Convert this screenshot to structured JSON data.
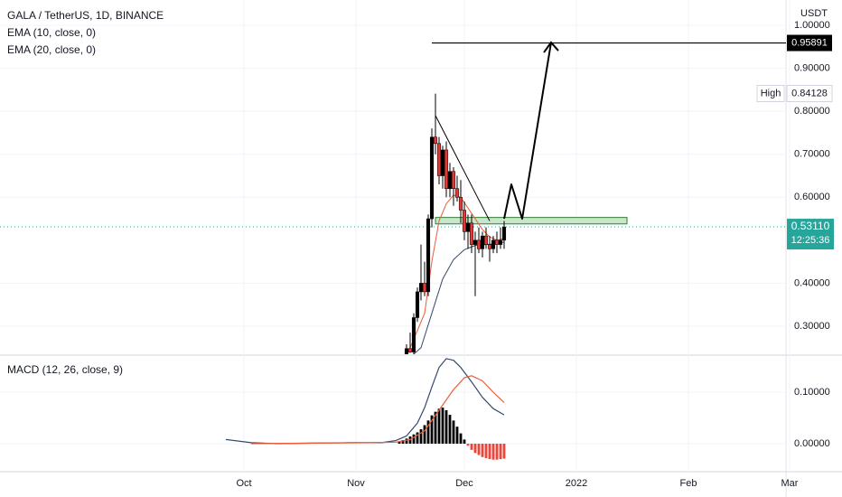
{
  "colors": {
    "up": "#000000",
    "down": "#e53935",
    "ema_fast": "#ef5a3a",
    "ema_slow": "#344a6b",
    "macd_line": "#344a6b",
    "signal_line": "#ef5a3a",
    "hist_up": "#000000",
    "hist_down": "#f44336",
    "grid": "#f0f3fa",
    "axis_text": "#131722",
    "last_price_bg": "#26a69a",
    "target_bg": "#000000",
    "zone_fill": "#c8e6c9",
    "zone_stroke": "#2e7d32",
    "current_price_line": "#26a69a"
  },
  "header": {
    "symbol_line": "GALA / TetherUS, 1D, BINANCE",
    "ema10_label": "EMA (10, close, 0)",
    "ema20_label": "EMA (20, close, 0)",
    "macd_label": "MACD (12, 26, close, 9)",
    "currency": "USDT"
  },
  "chart_data": [
    {
      "type": "candlestick",
      "title": "GALA / TetherUS, 1D, BINANCE",
      "ylabel": "USDT",
      "ylim": [
        0.23,
        1.0
      ],
      "price_ticks": [
        "1.00000",
        "0.90000",
        "0.80000",
        "0.70000",
        "0.60000",
        "0.40000",
        "0.30000"
      ],
      "price_tick_values": [
        1.0,
        0.9,
        0.8,
        0.7,
        0.6,
        0.4,
        0.3
      ],
      "x_labels": [
        "Oct",
        "Nov",
        "Dec",
        "2022",
        "Feb",
        "Mar"
      ],
      "x_label_dates": [
        "2021-10-01",
        "2021-11-01",
        "2021-12-01",
        "2022-01-01",
        "2022-02-01",
        "2022-03-01"
      ],
      "candles": [
        {
          "d": "2021-11-15",
          "o": 0.225,
          "h": 0.258,
          "l": 0.218,
          "c": 0.248
        },
        {
          "d": "2021-11-16",
          "o": 0.248,
          "h": 0.285,
          "l": 0.238,
          "c": 0.24
        },
        {
          "d": "2021-11-17",
          "o": 0.24,
          "h": 0.33,
          "l": 0.235,
          "c": 0.32
        },
        {
          "d": "2021-11-18",
          "o": 0.32,
          "h": 0.39,
          "l": 0.31,
          "c": 0.38
        },
        {
          "d": "2021-11-19",
          "o": 0.38,
          "h": 0.49,
          "l": 0.36,
          "c": 0.4
        },
        {
          "d": "2021-11-20",
          "o": 0.4,
          "h": 0.45,
          "l": 0.37,
          "c": 0.38
        },
        {
          "d": "2021-11-21",
          "o": 0.38,
          "h": 0.56,
          "l": 0.37,
          "c": 0.55
        },
        {
          "d": "2021-11-22",
          "o": 0.55,
          "h": 0.76,
          "l": 0.53,
          "c": 0.74
        },
        {
          "d": "2021-11-23",
          "o": 0.74,
          "h": 0.841,
          "l": 0.7,
          "c": 0.725
        },
        {
          "d": "2021-11-24",
          "o": 0.725,
          "h": 0.74,
          "l": 0.63,
          "c": 0.65
        },
        {
          "d": "2021-11-25",
          "o": 0.65,
          "h": 0.72,
          "l": 0.62,
          "c": 0.71
        },
        {
          "d": "2021-11-26",
          "o": 0.71,
          "h": 0.73,
          "l": 0.6,
          "c": 0.62
        },
        {
          "d": "2021-11-27",
          "o": 0.62,
          "h": 0.68,
          "l": 0.6,
          "c": 0.66
        },
        {
          "d": "2021-11-28",
          "o": 0.66,
          "h": 0.67,
          "l": 0.58,
          "c": 0.62
        },
        {
          "d": "2021-11-29",
          "o": 0.62,
          "h": 0.65,
          "l": 0.59,
          "c": 0.6
        },
        {
          "d": "2021-11-30",
          "o": 0.6,
          "h": 0.64,
          "l": 0.54,
          "c": 0.57
        },
        {
          "d": "2021-12-01",
          "o": 0.57,
          "h": 0.59,
          "l": 0.5,
          "c": 0.52
        },
        {
          "d": "2021-12-02",
          "o": 0.52,
          "h": 0.56,
          "l": 0.48,
          "c": 0.54
        },
        {
          "d": "2021-12-03",
          "o": 0.54,
          "h": 0.56,
          "l": 0.47,
          "c": 0.49
        },
        {
          "d": "2021-12-04",
          "o": 0.49,
          "h": 0.52,
          "l": 0.37,
          "c": 0.5
        },
        {
          "d": "2021-12-05",
          "o": 0.5,
          "h": 0.53,
          "l": 0.47,
          "c": 0.48
        },
        {
          "d": "2021-12-06",
          "o": 0.48,
          "h": 0.52,
          "l": 0.46,
          "c": 0.51
        },
        {
          "d": "2021-12-07",
          "o": 0.51,
          "h": 0.53,
          "l": 0.48,
          "c": 0.49
        },
        {
          "d": "2021-12-08",
          "o": 0.49,
          "h": 0.51,
          "l": 0.45,
          "c": 0.48
        },
        {
          "d": "2021-12-09",
          "o": 0.48,
          "h": 0.51,
          "l": 0.47,
          "c": 0.5
        },
        {
          "d": "2021-12-10",
          "o": 0.5,
          "h": 0.52,
          "l": 0.47,
          "c": 0.49
        },
        {
          "d": "2021-12-11",
          "o": 0.49,
          "h": 0.53,
          "l": 0.48,
          "c": 0.5
        },
        {
          "d": "2021-12-12",
          "o": 0.5,
          "h": 0.545,
          "l": 0.48,
          "c": 0.531
        }
      ],
      "ema10": [
        [
          "2021-11-15",
          0.23
        ],
        [
          "2021-11-18",
          0.29
        ],
        [
          "2021-11-20",
          0.33
        ],
        [
          "2021-11-22",
          0.45
        ],
        [
          "2021-11-24",
          0.545
        ],
        [
          "2021-11-26",
          0.585
        ],
        [
          "2021-11-28",
          0.605
        ],
        [
          "2021-11-30",
          0.6
        ],
        [
          "2021-12-02",
          0.575
        ],
        [
          "2021-12-04",
          0.55
        ],
        [
          "2021-12-06",
          0.525
        ],
        [
          "2021-12-08",
          0.508
        ],
        [
          "2021-12-10",
          0.5
        ],
        [
          "2021-12-12",
          0.504
        ]
      ],
      "ema20": [
        [
          "2021-11-15",
          0.22
        ],
        [
          "2021-11-19",
          0.25
        ],
        [
          "2021-11-22",
          0.33
        ],
        [
          "2021-11-25",
          0.41
        ],
        [
          "2021-11-28",
          0.455
        ],
        [
          "2021-12-01",
          0.478
        ],
        [
          "2021-12-04",
          0.488
        ],
        [
          "2021-12-07",
          0.49
        ],
        [
          "2021-12-10",
          0.492
        ],
        [
          "2021-12-12",
          0.496
        ]
      ],
      "annotations": {
        "high_label": "High",
        "high_value": 0.84128,
        "high_text": "0.84128",
        "target_value": 0.95891,
        "target_text": "0.95891",
        "last_value": 0.5311,
        "last_text": "0.53110",
        "countdown_text": "12:25:36",
        "resistance_zone": {
          "from": "2021-11-23",
          "to": "2022-01-15",
          "low": 0.538,
          "high": 0.553
        },
        "trendline": [
          [
            "2021-11-23",
            0.79
          ],
          [
            "2021-12-08",
            0.545
          ]
        ],
        "target_line": {
          "from": "2021-11-22",
          "to": "2022-03-01",
          "value": 0.95891
        },
        "projection_path": [
          [
            "2021-12-12",
            0.55
          ],
          [
            "2021-12-14",
            0.63
          ],
          [
            "2021-12-17",
            0.55
          ],
          [
            "2021-12-25",
            0.96
          ]
        ]
      }
    },
    {
      "type": "line",
      "title": "MACD (12, 26, close, 9)",
      "ylim": [
        -0.025,
        0.19
      ],
      "y_ticks": [
        "0.10000",
        "0.00000"
      ],
      "y_tick_values": [
        0.1,
        0.0
      ],
      "macd": [
        [
          "2021-09-26",
          0.008
        ],
        [
          "2021-10-03",
          0.002
        ],
        [
          "2021-10-10",
          0.0
        ],
        [
          "2021-10-20",
          0.001
        ],
        [
          "2021-10-30",
          0.002
        ],
        [
          "2021-11-08",
          0.002
        ],
        [
          "2021-11-12",
          0.006
        ],
        [
          "2021-11-15",
          0.015
        ],
        [
          "2021-11-18",
          0.04
        ],
        [
          "2021-11-20",
          0.07
        ],
        [
          "2021-11-22",
          0.11
        ],
        [
          "2021-11-24",
          0.148
        ],
        [
          "2021-11-26",
          0.165
        ],
        [
          "2021-11-28",
          0.162
        ],
        [
          "2021-11-30",
          0.148
        ],
        [
          "2021-12-03",
          0.12
        ],
        [
          "2021-12-06",
          0.09
        ],
        [
          "2021-12-09",
          0.068
        ],
        [
          "2021-12-12",
          0.056
        ]
      ],
      "signal": [
        [
          "2021-10-03",
          0.0
        ],
        [
          "2021-10-20",
          0.001
        ],
        [
          "2021-11-05",
          0.002
        ],
        [
          "2021-11-12",
          0.003
        ],
        [
          "2021-11-16",
          0.008
        ],
        [
          "2021-11-20",
          0.025
        ],
        [
          "2021-11-24",
          0.065
        ],
        [
          "2021-11-28",
          0.105
        ],
        [
          "2021-12-01",
          0.128
        ],
        [
          "2021-12-03",
          0.132
        ],
        [
          "2021-12-06",
          0.122
        ],
        [
          "2021-12-09",
          0.1
        ],
        [
          "2021-12-12",
          0.08
        ]
      ],
      "histogram": [
        [
          "2021-11-13",
          0.004
        ],
        [
          "2021-11-14",
          0.007
        ],
        [
          "2021-11-15",
          0.01
        ],
        [
          "2021-11-16",
          0.014
        ],
        [
          "2021-11-17",
          0.018
        ],
        [
          "2021-11-18",
          0.022
        ],
        [
          "2021-11-19",
          0.028
        ],
        [
          "2021-11-20",
          0.036
        ],
        [
          "2021-11-21",
          0.045
        ],
        [
          "2021-11-22",
          0.055
        ],
        [
          "2021-11-23",
          0.062
        ],
        [
          "2021-11-24",
          0.068
        ],
        [
          "2021-11-25",
          0.07
        ],
        [
          "2021-11-26",
          0.065
        ],
        [
          "2021-11-27",
          0.056
        ],
        [
          "2021-11-28",
          0.045
        ],
        [
          "2021-11-29",
          0.033
        ],
        [
          "2021-11-30",
          0.02
        ],
        [
          "2021-12-01",
          0.008
        ],
        [
          "2021-12-02",
          -0.004
        ],
        [
          "2021-12-03",
          -0.012
        ],
        [
          "2021-12-04",
          -0.018
        ],
        [
          "2021-12-05",
          -0.022
        ],
        [
          "2021-12-06",
          -0.026
        ],
        [
          "2021-12-07",
          -0.028
        ],
        [
          "2021-12-08",
          -0.03
        ],
        [
          "2021-12-09",
          -0.031
        ],
        [
          "2021-12-10",
          -0.031
        ],
        [
          "2021-12-11",
          -0.03
        ],
        [
          "2021-12-12",
          -0.029
        ]
      ]
    }
  ]
}
